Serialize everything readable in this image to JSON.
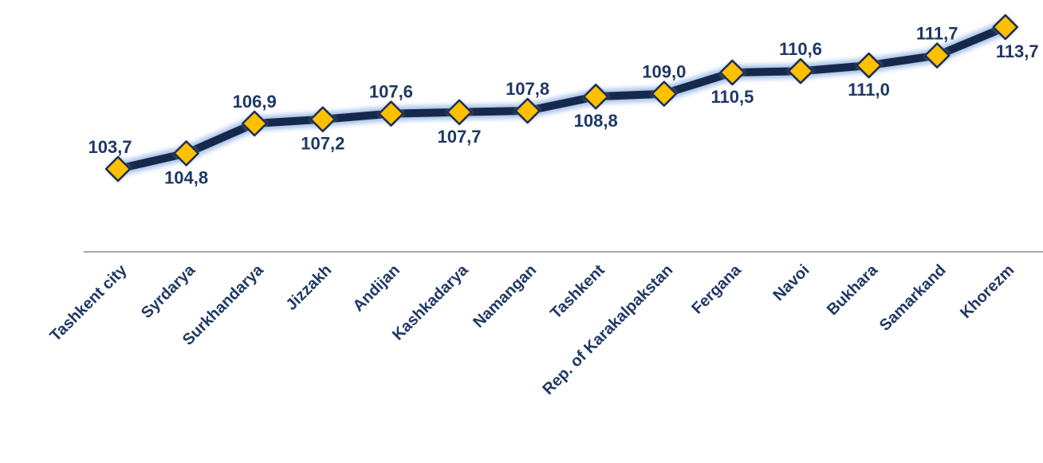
{
  "chart_data": {
    "type": "line",
    "categories": [
      "Tashkent city",
      "Syrdarya",
      "Surkhandarya",
      "Jizzakh",
      "Andijan",
      "Kashkadarya",
      "Namangan",
      "Tashkent",
      "Rep. of Karakalpakstan",
      "Fergana",
      "Navoi",
      "Bukhara",
      "Samarkand",
      "Khorezm"
    ],
    "values": [
      103.7,
      104.8,
      106.9,
      107.2,
      107.6,
      107.7,
      107.8,
      108.8,
      109.0,
      110.5,
      110.6,
      111.0,
      111.7,
      113.7
    ],
    "data_labels": [
      "103,7",
      "104,8",
      "106,9",
      "107,2",
      "107,6",
      "107,7",
      "107,8",
      "108,8",
      "109,0",
      "110,5",
      "110,6",
      "111,0",
      "111,7",
      "113,7"
    ],
    "label_positions": [
      "above",
      "below",
      "above",
      "below",
      "above",
      "below",
      "above",
      "below",
      "above",
      "below",
      "above",
      "below",
      "above",
      "below"
    ],
    "title": "",
    "xlabel": "",
    "ylabel": "",
    "ylim": [
      103.7,
      113.7
    ],
    "grid": false,
    "legend": "none",
    "colors": {
      "line": "#16294a",
      "glow": "#a9c2ea",
      "marker_fill": "#ffc000",
      "marker_stroke": "#1c2e52",
      "text": "#1f3864",
      "axis": "#a6a6a6"
    }
  }
}
